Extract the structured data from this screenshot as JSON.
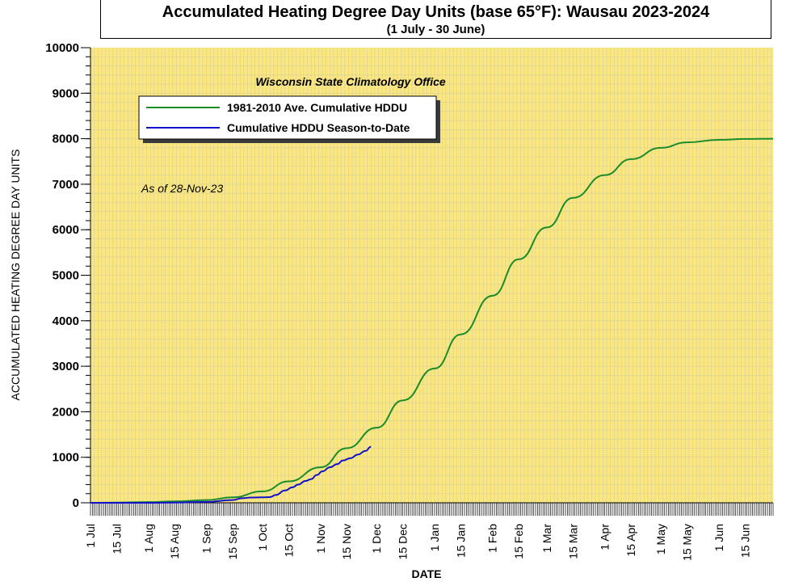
{
  "header": {
    "title": "Accumulated Heating Degree Day Units (base 65°F): Wausau 2023-2024",
    "subtitle": "(1 July - 30 June)"
  },
  "chart_data": {
    "type": "line",
    "title": "Accumulated Heating Degree Day Units (base 65°F): Wausau 2023-2024",
    "subtitle": "(1 July - 30 June)",
    "xlabel": "DATE",
    "ylabel": "ACCUMULATED HEATING DEGREE DAY UNITS",
    "ylim": [
      0,
      10000
    ],
    "yticks": [
      0,
      1000,
      2000,
      3000,
      4000,
      5000,
      6000,
      7000,
      8000,
      9000,
      10000
    ],
    "xlim": [
      "1 Jul",
      "30 Jun"
    ],
    "xtick_labels": [
      "1 Jul",
      "15 Jul",
      "1 Aug",
      "15 Aug",
      "1 Sep",
      "15 Sep",
      "1 Oct",
      "15 Oct",
      "1 Nov",
      "15 Nov",
      "1 Dec",
      "15 Dec",
      "1 Jan",
      "15 Jan",
      "1 Feb",
      "15 Feb",
      "1 Mar",
      "15 Mar",
      "1 Apr",
      "15 Apr",
      "1 May",
      "15 May",
      "1 Jun",
      "15 Jun"
    ],
    "source_note": "Wisconsin State Climatology Office",
    "as_of": "As of 28-Nov-23",
    "legend_position": "top-left",
    "grid": true,
    "background_color": "#fae77f",
    "series": [
      {
        "name": "1981-2010 Ave. Cumulative HDDU",
        "color": "#1a8c2a",
        "x": [
          "1 Jul",
          "15 Jul",
          "1 Aug",
          "15 Aug",
          "1 Sep",
          "15 Sep",
          "1 Oct",
          "15 Oct",
          "1 Nov",
          "15 Nov",
          "1 Dec",
          "15 Dec",
          "1 Jan",
          "15 Jan",
          "1 Feb",
          "15 Feb",
          "1 Mar",
          "15 Mar",
          "1 Apr",
          "15 Apr",
          "1 May",
          "15 May",
          "1 Jun",
          "15 Jun",
          "30 Jun"
        ],
        "values": [
          0,
          5,
          15,
          30,
          60,
          120,
          250,
          470,
          780,
          1200,
          1650,
          2250,
          2950,
          3700,
          4550,
          5350,
          6050,
          6700,
          7200,
          7550,
          7800,
          7920,
          7975,
          7995,
          8000
        ]
      },
      {
        "name": "Cumulative HDDU Season-to-Date",
        "color": "#1111cc",
        "x": [
          "1 Jul",
          "15 Jul",
          "1 Aug",
          "15 Aug",
          "1 Sep",
          "15 Sep",
          "20 Sep",
          "25 Sep",
          "1 Oct",
          "5 Oct",
          "8 Oct",
          "13 Oct",
          "17 Oct",
          "20 Oct",
          "24 Oct",
          "27 Oct",
          "30 Oct",
          "2 Nov",
          "6 Nov",
          "10 Nov",
          "13 Nov",
          "17 Nov",
          "21 Nov",
          "25 Nov",
          "28 Nov"
        ],
        "values": [
          0,
          0,
          0,
          5,
          20,
          60,
          100,
          115,
          120,
          125,
          170,
          270,
          340,
          400,
          480,
          520,
          610,
          690,
          780,
          850,
          930,
          980,
          1060,
          1140,
          1230
        ]
      }
    ]
  }
}
